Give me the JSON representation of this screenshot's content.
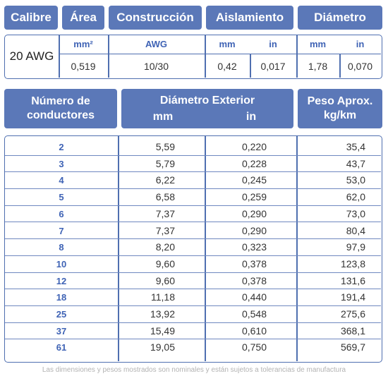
{
  "header": {
    "calibre": "Calibre",
    "area": "Área",
    "construccion": "Construcción",
    "aislamiento": "Aislamiento",
    "diametro": "Diámetro"
  },
  "spec": {
    "gauge": "20 AWG",
    "area_unit": "mm²",
    "area_value": "0,519",
    "construction_unit": "AWG",
    "construction_value": "10/30",
    "insulation_unit_mm": "mm",
    "insulation_unit_in": "in",
    "insulation_mm": "0,42",
    "insulation_in": "0,017",
    "diameter_unit_mm": "mm",
    "diameter_unit_in": "in",
    "diameter_mm": "1,78",
    "diameter_in": "0,070"
  },
  "table": {
    "col_conductors": "Número de conductores",
    "col_conductors_line1": "Número de",
    "col_conductors_line2": "conductores",
    "col_outer_diameter": "Diámetro Exterior",
    "col_mm": "mm",
    "col_in": "in",
    "col_weight_line1": "Peso Aprox.",
    "col_weight_line2": "kg/km",
    "rows": [
      {
        "n": "2",
        "mm": "5,59",
        "in": "0,220",
        "kg": "35,4"
      },
      {
        "n": "3",
        "mm": "5,79",
        "in": "0,228",
        "kg": "43,7"
      },
      {
        "n": "4",
        "mm": "6,22",
        "in": "0,245",
        "kg": "53,0"
      },
      {
        "n": "5",
        "mm": "6,58",
        "in": "0,259",
        "kg": "62,0"
      },
      {
        "n": "6",
        "mm": "7,37",
        "in": "0,290",
        "kg": "73,0"
      },
      {
        "n": "7",
        "mm": "7,37",
        "in": "0,290",
        "kg": "80,4"
      },
      {
        "n": "8",
        "mm": "8,20",
        "in": "0,323",
        "kg": "97,9"
      },
      {
        "n": "10",
        "mm": "9,60",
        "in": "0,378",
        "kg": "123,8"
      },
      {
        "n": "12",
        "mm": "9,60",
        "in": "0,378",
        "kg": "131,6"
      },
      {
        "n": "18",
        "mm": "11,18",
        "in": "0,440",
        "kg": "191,4"
      },
      {
        "n": "25",
        "mm": "13,92",
        "in": "0,548",
        "kg": "275,6"
      },
      {
        "n": "37",
        "mm": "15,49",
        "in": "0,610",
        "kg": "368,1"
      },
      {
        "n": "61",
        "mm": "19,05",
        "in": "0,750",
        "kg": "569,7"
      }
    ]
  },
  "footnote": "Las dimensiones y pesos mostrados son nominales y están sujetos a tolerancias de manufactura"
}
